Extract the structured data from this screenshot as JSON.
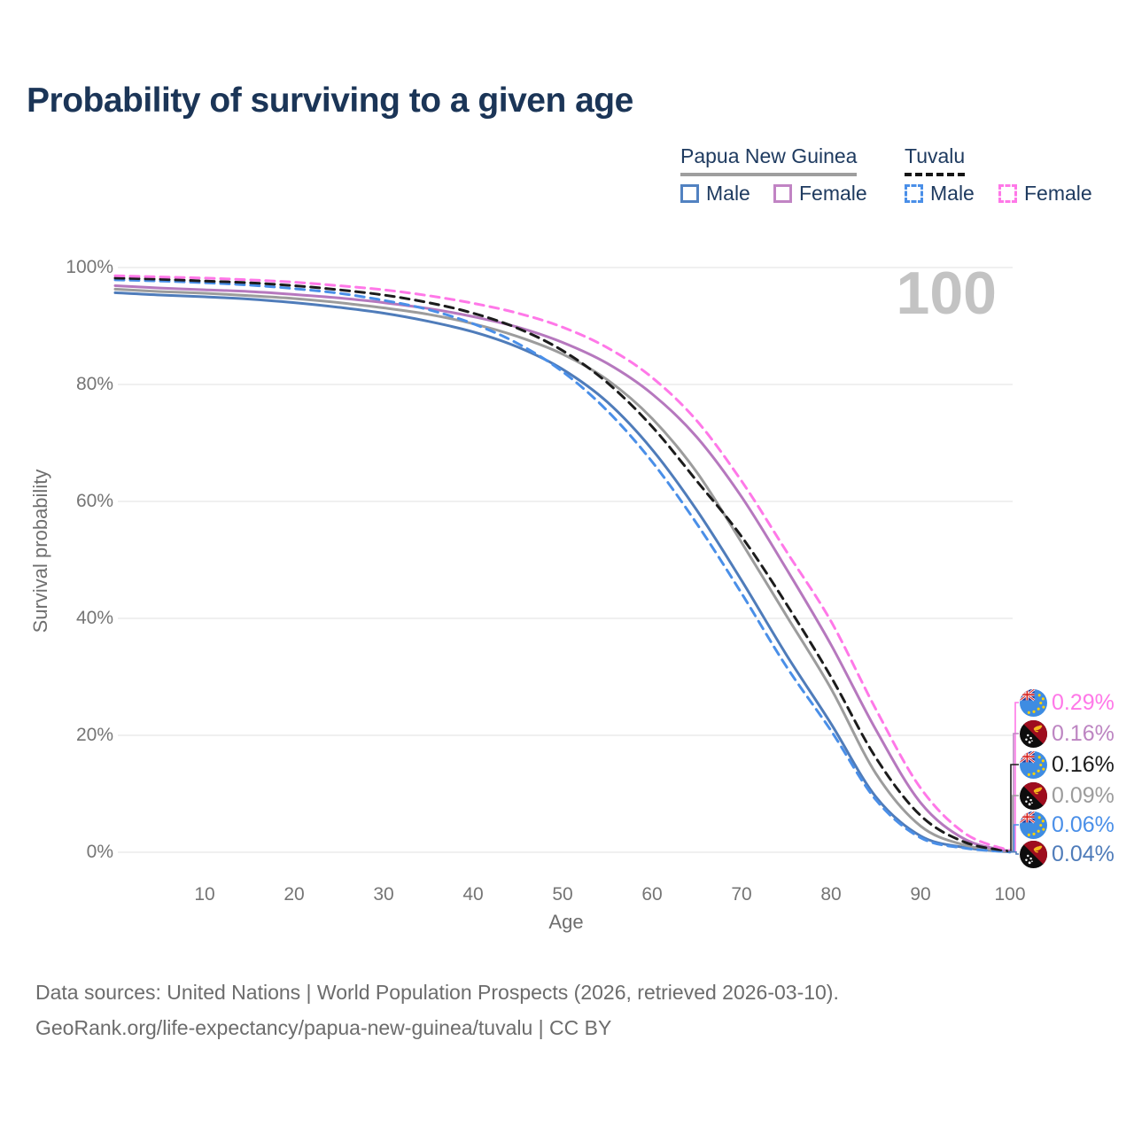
{
  "title": "Probability of surviving to a given age",
  "legend": {
    "png": {
      "label": "Papua New Guinea",
      "male": "Male",
      "female": "Female"
    },
    "tuvalu": {
      "label": "Tuvalu",
      "male": "Male",
      "female": "Female"
    }
  },
  "watermark": "100",
  "axes": {
    "y_title": "Survival probability",
    "x_title": "Age",
    "y_ticks": [
      "0%",
      "20%",
      "40%",
      "60%",
      "80%",
      "100%"
    ],
    "x_ticks": [
      10,
      20,
      30,
      40,
      50,
      60,
      70,
      80,
      90,
      100
    ]
  },
  "end_labels": [
    {
      "flag": "tuvalu",
      "series": "Tuvalu Female",
      "value": "0.29%",
      "color": "#ff78e8"
    },
    {
      "flag": "papua-new-guinea",
      "series": "Papua New Guinea Female",
      "value": "0.16%",
      "color": "#bd85c2"
    },
    {
      "flag": "tuvalu",
      "series": "Tuvalu",
      "value": "0.16%",
      "color": "#1c1c1c"
    },
    {
      "flag": "papua-new-guinea",
      "series": "Papua New Guinea",
      "value": "0.09%",
      "color": "#9c9c9c"
    },
    {
      "flag": "tuvalu",
      "series": "Tuvalu Male",
      "value": "0.06%",
      "color": "#4a8fe8"
    },
    {
      "flag": "papua-new-guinea",
      "series": "Papua New Guinea Male",
      "value": "0.04%",
      "color": "#4f7cba"
    }
  ],
  "footer": {
    "line1": "Data sources: United Nations | World Population Prospects (2026, retrieved 2026-03-10).",
    "line2": "GeoRank.org/life-expectancy/papua-new-guinea/tuvalu | CC BY"
  },
  "colors": {
    "title": "#1b3557",
    "legend_text": "#1f3b60",
    "axis_text": "#757575",
    "gridline": "#e8e8e8",
    "watermark": "#c3c3c3",
    "footer_text": "#6c6c6c",
    "png_male": "#4f7cba",
    "png_female": "#b678be",
    "png_all": "#9c9c9c",
    "tuvalu_male": "#4a8fe8",
    "tuvalu_female": "#ff78e8",
    "tuvalu_all": "#1c1c1c"
  },
  "chart_data": {
    "type": "line",
    "title": "Probability of surviving to a given age",
    "xlabel": "Age",
    "ylabel": "Survival probability",
    "xlim": [
      0,
      100
    ],
    "ylim": [
      0,
      100
    ],
    "y_unit": "%",
    "grid": "horizontal",
    "legend_position": "top-right",
    "x": [
      0,
      5,
      10,
      15,
      20,
      25,
      30,
      35,
      40,
      45,
      50,
      55,
      60,
      65,
      70,
      75,
      80,
      85,
      90,
      95,
      100
    ],
    "series": [
      {
        "name": "Papua New Guinea Male",
        "country": "Papua New Guinea",
        "sex": "Male",
        "style": "solid",
        "color": "#4f7cba",
        "values": [
          95.7,
          95.3,
          95.0,
          94.6,
          94.0,
          93.2,
          92.2,
          90.8,
          89.0,
          86.4,
          82.6,
          77.0,
          68.9,
          58.5,
          46.5,
          33.8,
          22.0,
          9.5,
          2.8,
          0.8,
          0.04
        ],
        "end_value_pct": 0.04
      },
      {
        "name": "Papua New Guinea",
        "country": "Papua New Guinea",
        "sex": "All",
        "style": "solid",
        "color": "#9c9c9c",
        "values": [
          96.3,
          95.9,
          95.6,
          95.2,
          94.7,
          94.0,
          93.1,
          92.0,
          90.4,
          88.2,
          85.2,
          80.8,
          74.2,
          65.0,
          53.0,
          40.5,
          28.0,
          13.5,
          4.5,
          1.2,
          0.09
        ],
        "end_value_pct": 0.09
      },
      {
        "name": "Papua New Guinea Female",
        "country": "Papua New Guinea",
        "sex": "Female",
        "style": "solid",
        "color": "#b678be",
        "values": [
          96.9,
          96.5,
          96.2,
          95.9,
          95.4,
          94.8,
          94.0,
          93.0,
          91.6,
          89.8,
          87.2,
          83.6,
          78.4,
          71.0,
          60.8,
          48.5,
          35.5,
          21.0,
          8.5,
          2.2,
          0.16
        ],
        "end_value_pct": 0.16
      },
      {
        "name": "Tuvalu Male",
        "country": "Tuvalu",
        "sex": "Male",
        "style": "dashed",
        "color": "#4a8fe8",
        "values": [
          97.9,
          97.7,
          97.4,
          97.0,
          96.4,
          95.6,
          94.4,
          92.8,
          90.4,
          87.0,
          82.2,
          75.5,
          66.8,
          56.2,
          44.3,
          31.8,
          20.8,
          9.0,
          2.5,
          0.7,
          0.06
        ],
        "end_value_pct": 0.06
      },
      {
        "name": "Tuvalu",
        "country": "Tuvalu",
        "sex": "All",
        "style": "dashed",
        "color": "#1c1c1c",
        "values": [
          98.2,
          98.0,
          97.7,
          97.4,
          96.9,
          96.2,
          95.3,
          94.0,
          92.2,
          89.6,
          85.8,
          80.3,
          72.8,
          63.5,
          54.0,
          42.5,
          30.0,
          16.2,
          6.3,
          1.7,
          0.16
        ],
        "end_value_pct": 0.16
      },
      {
        "name": "Tuvalu Female",
        "country": "Tuvalu",
        "sex": "Female",
        "style": "dashed",
        "color": "#ff78e8",
        "values": [
          98.6,
          98.4,
          98.2,
          97.9,
          97.5,
          96.9,
          96.2,
          95.2,
          93.9,
          92.2,
          89.8,
          86.3,
          81.2,
          73.8,
          63.5,
          51.5,
          39.5,
          24.5,
          11.0,
          3.2,
          0.29
        ],
        "end_value_pct": 0.29
      }
    ]
  }
}
